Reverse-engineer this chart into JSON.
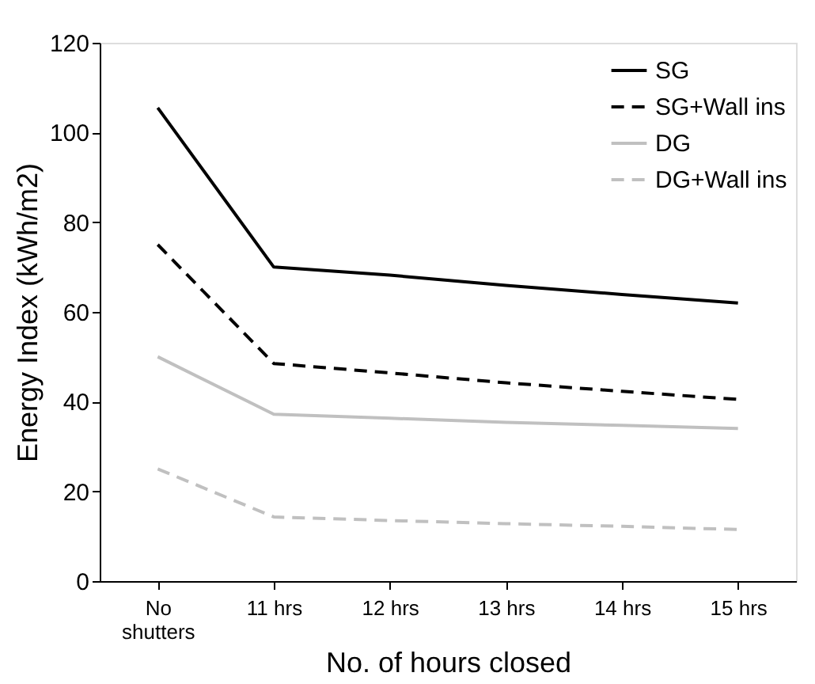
{
  "chart_data": {
    "type": "line",
    "xlabel": "No. of hours closed",
    "ylabel": "Energy Index (kWh/m2)",
    "categories": [
      "No shutters",
      "11 hrs",
      "12 hrs",
      "13 hrs",
      "14 hrs",
      "15 hrs"
    ],
    "series": [
      {
        "name": "SG",
        "color": "#000000",
        "line_style": "solid",
        "values": [
          105.5,
          70,
          68.2,
          65.9,
          63.9,
          62
        ]
      },
      {
        "name": "SG+Wall ins",
        "color": "#000000",
        "line_style": "dashed",
        "values": [
          75,
          48.5,
          46.4,
          44.2,
          42.3,
          40.5
        ]
      },
      {
        "name": "DG",
        "color": "#c0c0c0",
        "line_style": "solid",
        "values": [
          50,
          37.2,
          36.3,
          35.4,
          34.7,
          34
        ]
      },
      {
        "name": "DG+Wall ins",
        "color": "#c0c0c0",
        "line_style": "dashed",
        "values": [
          25,
          14.3,
          13.5,
          12.8,
          12.2,
          11.5
        ]
      }
    ],
    "ylim": [
      0,
      120
    ],
    "yticks": [
      0,
      20,
      40,
      60,
      80,
      100,
      120
    ],
    "grid": false,
    "legend": "top right",
    "marker": "none"
  }
}
